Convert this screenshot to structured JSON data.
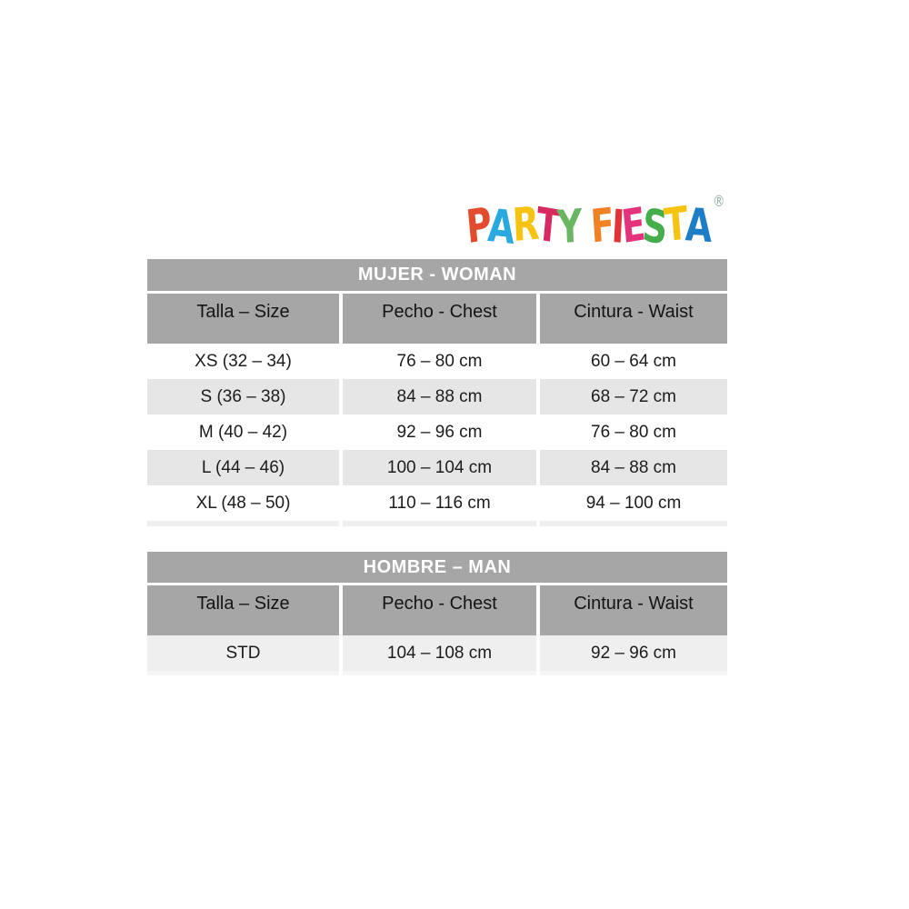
{
  "logo": {
    "party": [
      {
        "ch": "P",
        "color": "#e34b2e"
      },
      {
        "ch": "A",
        "color": "#2aa9e0"
      },
      {
        "ch": "R",
        "color": "#f7c312"
      },
      {
        "ch": "T",
        "color": "#d62a60"
      },
      {
        "ch": "Y",
        "color": "#69b562"
      }
    ],
    "fiesta": [
      {
        "ch": "F",
        "color": "#f08124"
      },
      {
        "ch": "I",
        "color": "#e23137"
      },
      {
        "ch": "E",
        "color": "#e5327d"
      },
      {
        "ch": "S",
        "color": "#45ad4b"
      },
      {
        "ch": "T",
        "color": "#f7c312"
      },
      {
        "ch": "A",
        "color": "#1e7dc4"
      }
    ],
    "mark": "®"
  },
  "tables": [
    {
      "title": "MUJER - WOMAN",
      "columns": [
        "Talla – Size",
        "Pecho - Chest",
        "Cintura - Waist"
      ],
      "rows": [
        [
          "XS (32 – 34)",
          "76 – 80 cm",
          "60 – 64 cm"
        ],
        [
          "S (36 – 38)",
          "84 – 88 cm",
          "68 – 72 cm"
        ],
        [
          "M (40 – 42)",
          "92 – 96 cm",
          "76 – 80 cm"
        ],
        [
          "L (44 – 46)",
          "100 – 104 cm",
          "84 – 88 cm"
        ],
        [
          "XL (48 – 50)",
          "110 – 116 cm",
          "94 – 100 cm"
        ]
      ]
    },
    {
      "title": "HOMBRE – MAN",
      "columns": [
        "Talla – Size",
        "Pecho - Chest",
        "Cintura - Waist"
      ],
      "rows": [
        [
          "STD",
          "104 – 108 cm",
          "92 – 96 cm"
        ]
      ]
    }
  ],
  "theme": {
    "band_gray": "#a6a6a6",
    "row_alt_gray": "#e6e6e6",
    "row_light_gray": "#efefef",
    "row_white": "#ffffff",
    "title_text": "#ffffff",
    "body_text": "#1c1c1c",
    "page_bg": "#ffffff"
  }
}
